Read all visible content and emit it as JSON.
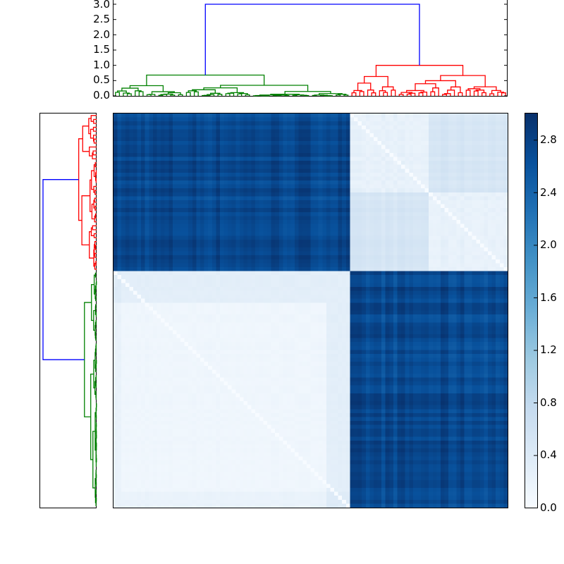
{
  "chart_data": [
    {
      "type": "dendrogram",
      "orientation": "top",
      "title": "",
      "ylabel": "",
      "ylim": [
        0,
        3.0
      ],
      "yticks": [
        "0.0",
        "0.5",
        "1.0",
        "1.5",
        "2.0",
        "2.5",
        "3.0"
      ],
      "root_height": 3.0,
      "clusters": [
        {
          "name": "green",
          "color": "#008000",
          "merge_height": 0.68,
          "leaf_fraction": 0.6,
          "sub_merges": [
            0.42,
            0.28,
            0.2,
            0.15,
            0.12,
            0.3,
            0.22,
            0.1
          ]
        },
        {
          "name": "red",
          "color": "#ff0000",
          "merge_height": 1.0,
          "leaf_fraction": 0.4,
          "sub_merges": [
            0.38,
            0.22,
            0.9,
            0.6,
            0.25,
            0.15
          ]
        }
      ],
      "link_color_above_threshold": "#0000ff"
    },
    {
      "type": "dendrogram",
      "orientation": "left",
      "clusters": [
        {
          "name": "red",
          "color": "#ff0000",
          "position": "top",
          "row_fraction": 0.4
        },
        {
          "name": "green",
          "color": "#008000",
          "position": "bottom",
          "row_fraction": 0.6
        }
      ],
      "link_color_above_threshold": "#0000ff"
    },
    {
      "type": "heatmap",
      "colormap": "Blues",
      "vmin": 0.0,
      "vmax": 3.0,
      "n": 100,
      "blocks": [
        {
          "rows": "top (red cluster, 40%)",
          "cols": "left (green cluster, 60%)",
          "value": 2.7
        },
        {
          "rows": "top (red cluster, 40%)",
          "cols": "right (red cluster, 40%)",
          "value": 0.45
        },
        {
          "rows": "bottom (green cluster, 60%)",
          "cols": "left (green cluster, 60%)",
          "value": 0.15
        },
        {
          "rows": "bottom (green cluster, 60%)",
          "cols": "right (red cluster, 40%)",
          "value": 2.7
        }
      ],
      "row_split_fraction": 0.397,
      "col_split_fraction": 0.604,
      "diagonal_value": 0.0
    },
    {
      "type": "colorbar",
      "ticks": [
        "0.0",
        "0.4",
        "0.8",
        "1.2",
        "1.6",
        "2.0",
        "2.4",
        "2.8"
      ],
      "range": [
        0.0,
        3.0
      ],
      "colormap": "Blues"
    }
  ],
  "top_dendro": {
    "ytick_labels": [
      "3.0",
      "2.5",
      "2.0",
      "1.5",
      "1.0",
      "0.5",
      "0.0"
    ]
  },
  "colorbar": {
    "tick_labels": [
      "2.8",
      "2.4",
      "2.0",
      "1.6",
      "1.2",
      "0.8",
      "0.4",
      "0.0"
    ]
  },
  "colors": {
    "green": "#008000",
    "red": "#ff0000",
    "blue": "#0000ff",
    "dark": "#08306b",
    "light": "#f7fbff"
  }
}
